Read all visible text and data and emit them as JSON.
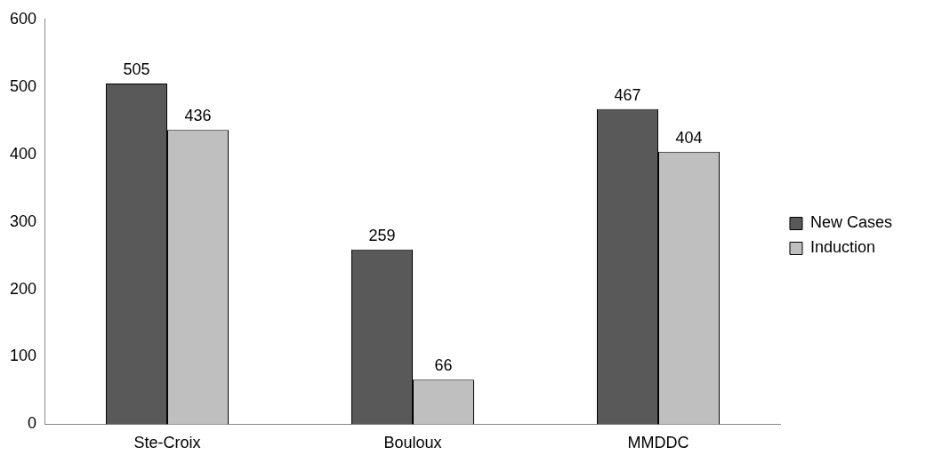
{
  "chart_data": {
    "type": "bar",
    "categories": [
      "Ste-Croix",
      "Bouloux",
      "MMDDC"
    ],
    "series": [
      {
        "name": "New Cases",
        "color": "#595959",
        "values": [
          505,
          259,
          467
        ]
      },
      {
        "name": "Induction",
        "color": "#bfbfbf",
        "values": [
          436,
          66,
          404
        ]
      }
    ],
    "ylim": [
      0,
      600
    ],
    "yticks": [
      0,
      100,
      200,
      300,
      400,
      500,
      600
    ],
    "grid": false,
    "legend": "right",
    "data_labels": true
  }
}
